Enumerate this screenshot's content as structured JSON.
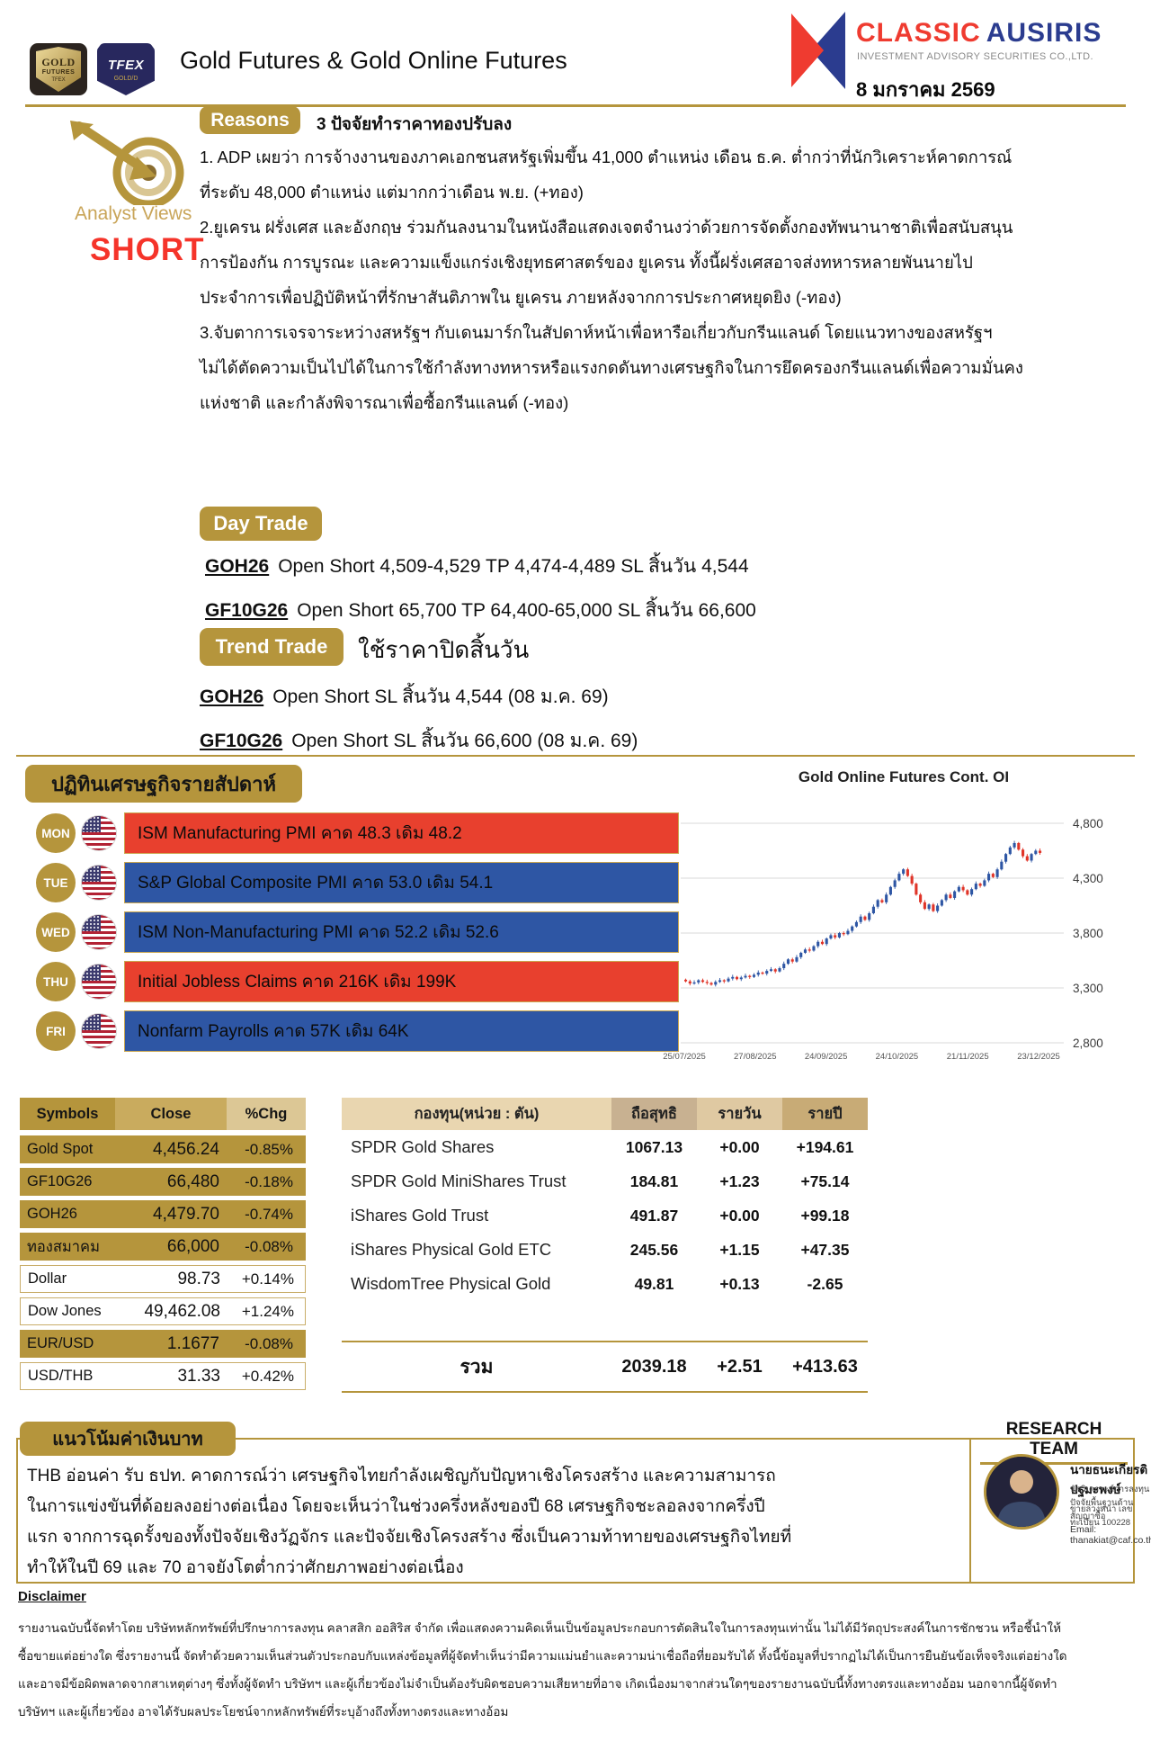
{
  "header": {
    "title": "Gold Futures & Gold Online Futures",
    "date": "8 มกราคม 2569",
    "gold_futures_badge": {
      "line1": "GOLD",
      "line2": "FUTURES",
      "line3": "TFEX"
    },
    "tfex_badge": {
      "line1": "TFEX",
      "line2": "GOLD/D"
    },
    "brand": {
      "name1": "CLASSIC",
      "name2": "AUSIRIS",
      "subtitle": "INVESTMENT ADVISORY SECURITIES CO.,LTD."
    }
  },
  "analyst": {
    "label": "Analyst Views",
    "view": "SHORT"
  },
  "reasons": {
    "badge": "Reasons",
    "title": "3 ปัจจัยทำราคาทองปรับลง",
    "lines": [
      "1. ADP เผยว่า การจ้างงานของภาคเอกชนสหรัฐเพิ่มขึ้น 41,000 ตำแหน่ง เดือน ธ.ค. ต่ำกว่าที่นักวิเคราะห์คาดการณ์",
      "ที่ระดับ 48,000 ตำแหน่ง แต่มากกว่าเดือน พ.ย. (+ทอง)",
      "2.ยูเครน ฝรั่งเศส และอังกฤษ ร่วมกันลงนามในหนังสือแสดงเจตจำนงว่าด้วยการจัดตั้งกองทัพนานาชาติเพื่อสนับสนุน",
      "การป้องกัน การบูรณะ และความแข็งแกร่งเชิงยุทธศาสตร์ของ ยูเครน  ทั้งนี้ฝรั่งเศสอาจส่งทหารหลายพันนายไป",
      "ประจำการเพื่อปฏิบัติหน้าที่รักษาสันติภาพใน ยูเครน ภายหลังจากการประกาศหยุดยิง (-ทอง)",
      "3.จับตาการเจรจาระหว่างสหรัฐฯ กับเดนมาร์กในสัปดาห์หน้าเพื่อหารือเกี่ยวกับกรีนแลนด์ โดยแนวทางของสหรัฐฯ",
      "ไม่ได้ตัดความเป็นไปได้ในการใช้กำลังทางทหารหรือแรงกดดันทางเศรษฐกิจในการยึดครองกรีนแลนด์เพื่อความมั่นคง",
      "แห่งชาติ และกำลังพิจารณาเพื่อซื้อกรีนแลนด์ (-ทอง)"
    ]
  },
  "day_trade": {
    "badge": "Day Trade",
    "items": [
      {
        "symbol": "GOH26",
        "text": "Open Short 4,509-4,529  TP 4,474-4,489 SL สิ้นวัน 4,544"
      },
      {
        "symbol": "GF10G26",
        "text": "Open Short 65,700  TP 64,400-65,000  SL สิ้นวัน 66,600"
      }
    ]
  },
  "trend_trade": {
    "badge": "Trend Trade",
    "note": "ใช้ราคาปิดสิ้นวัน",
    "items": [
      {
        "symbol": "GOH26",
        "text": "Open Short SL สิ้นวัน 4,544 (08 ม.ค. 69)"
      },
      {
        "symbol": "GF10G26",
        "text": "Open Short SL สิ้นวัน 66,600 (08 ม.ค. 69)"
      }
    ]
  },
  "calendar": {
    "title": "ปฏิทินเศรษฐกิจรายสัปดาห์",
    "rows": [
      {
        "day": "MON",
        "color": "red",
        "text": "ISM Manufacturing PMI คาด 48.3  เดิม 48.2"
      },
      {
        "day": "TUE",
        "color": "blue",
        "text": "S&P Global Composite PMI คาด 53.0 เดิม 54.1"
      },
      {
        "day": "WED",
        "color": "blue",
        "text": "ISM Non-Manufacturing PMI คาด 52.2 เดิม 52.6"
      },
      {
        "day": "THU",
        "color": "red",
        "text": "Initial Jobless Claims คาด 216K เดิม 199K"
      },
      {
        "day": "FRI",
        "color": "blue",
        "text": "Nonfarm Payrolls คาด 57K เดิม 64K"
      }
    ]
  },
  "chart_data": {
    "type": "candlestick",
    "title": "Gold Online Futures Cont. OI",
    "x_labels": [
      "25/07/2025",
      "27/08/2025",
      "24/09/2025",
      "24/10/2025",
      "21/11/2025",
      "23/12/2025"
    ],
    "y_tick_labels": [
      "4,800",
      "4,300",
      "3,800",
      "3,300",
      "2,800"
    ],
    "y_ticks": [
      4800,
      4300,
      3800,
      3300,
      2800
    ],
    "ylim": [
      2800,
      4800
    ],
    "grid": true,
    "closes": [
      3360,
      3340,
      3350,
      3370,
      3355,
      3345,
      3330,
      3355,
      3370,
      3360,
      3385,
      3400,
      3380,
      3395,
      3410,
      3400,
      3420,
      3440,
      3430,
      3455,
      3470,
      3450,
      3480,
      3520,
      3560,
      3540,
      3580,
      3620,
      3650,
      3640,
      3680,
      3720,
      3700,
      3750,
      3780,
      3760,
      3800,
      3790,
      3820,
      3860,
      3900,
      3950,
      3920,
      3980,
      4040,
      4100,
      4080,
      4150,
      4220,
      4280,
      4340,
      4380,
      4320,
      4250,
      4150,
      4080,
      4020,
      4060,
      4000,
      4050,
      4100,
      4150,
      4120,
      4180,
      4220,
      4190,
      4150,
      4200,
      4250,
      4230,
      4280,
      4340,
      4310,
      4380,
      4450,
      4520,
      4580,
      4620,
      4560,
      4500,
      4460,
      4520,
      4550,
      4530
    ]
  },
  "symbols_table": {
    "headers": [
      "Symbols",
      "Close",
      "%Chg"
    ],
    "rows": [
      {
        "symbol": "Gold Spot",
        "close": "4,456.24",
        "chg": "-0.85%",
        "style": "gold"
      },
      {
        "symbol": "GF10G26",
        "close": "66,480",
        "chg": "-0.18%",
        "style": "gold"
      },
      {
        "symbol": "GOH26",
        "close": "4,479.70",
        "chg": "-0.74%",
        "style": "gold"
      },
      {
        "symbol": "ทองสมาคม",
        "close": "66,000",
        "chg": "-0.08%",
        "style": "gold"
      },
      {
        "symbol": "Dollar",
        "close": "98.73",
        "chg": "+0.14%",
        "style": "white"
      },
      {
        "symbol": "Dow Jones",
        "close": "49,462.08",
        "chg": "+1.24%",
        "style": "white"
      },
      {
        "symbol": "EUR/USD",
        "close": "1.1677",
        "chg": "-0.08%",
        "style": "gold"
      },
      {
        "symbol": "USD/THB",
        "close": "31.33",
        "chg": "+0.42%",
        "style": "white"
      }
    ]
  },
  "funds_table": {
    "headers": [
      "กองทุน(หน่วย : ตัน)",
      "ถือสุทธิ",
      "รายวัน",
      "รายปี"
    ],
    "rows": [
      [
        "SPDR Gold Shares",
        "1067.13",
        "+0.00",
        "+194.61"
      ],
      [
        "SPDR Gold MiniShares Trust",
        "184.81",
        "+1.23",
        "+75.14"
      ],
      [
        "iShares Gold Trust",
        "491.87",
        "+0.00",
        "+99.18"
      ],
      [
        "iShares Physical Gold ETC",
        "245.56",
        "+1.15",
        "+47.35"
      ],
      [
        "WisdomTree Physical Gold",
        "49.81",
        "+0.13",
        "-2.65"
      ]
    ],
    "total": {
      "label": "รวม",
      "net": "2039.18",
      "day": "+2.51",
      "year": "+413.63"
    }
  },
  "thb": {
    "badge": "แนวโน้มค่าเงินบาท",
    "lines": [
      "THB อ่อนค่า รับ ธปท. คาดการณ์ว่า เศรษฐกิจไทยกำลังเผชิญกับปัญหาเชิงโครงสร้าง และความสามารถ",
      "ในการแข่งขันที่ด้อยลงอย่างต่อเนื่อง โดยจะเห็นว่าในช่วงครึ่งหลังของปี 68 เศรษฐกิจชะลอลงจากครึ่งปี",
      "แรก จากการฉุดรั้งของทั้งปัจจัยเชิงวัฏจักร และปัจจัยเชิงโครงสร้าง ซึ่งเป็นความท้าทายของเศรษฐกิจไทยที่",
      "ทำให้ในปี 69 และ 70 อาจยังโตต่ำกว่าศักยภาพอย่างต่อเนื่อง"
    ]
  },
  "research": {
    "title": "RESEARCH TEAM",
    "name": "นายธนะเกียรติ ปฐมะพงษ์",
    "line1": "นักวิเคราะห์การลงทุนปัจจัยพื้นฐานด้านสัญญาซื้อ",
    "line2": "ขายล่วงหน้า เลขทะเบียน 100228",
    "email": "Email: thanakiat@caf.co.th"
  },
  "disclaimer": {
    "title": "Disclaimer",
    "lines": [
      "รายงานฉบับนี้จัดทำโดย บริษัทหลักทรัพย์ที่ปรึกษาการลงทุน คลาสสิก ออสิริส จำกัด เพื่อแสดงความคิดเห็นเป็นข้อมูลประกอบการตัดสินใจในการลงทุนเท่านั้น  ไม่ได้มีวัตถุประสงค์ในการชักชวน  หรือชี้นำให้",
      "ซื้อขายแต่อย่างใด ซึ่งรายงานนี้ จัดทำด้วยความเห็นส่วนตัวประกอบกับแหล่งข้อมูลที่ผู้จัดทำเห็นว่ามีความแม่นยำและความน่าเชื่อถือที่ยอมรับได้  ทั้งนี้ข้อมูลที่ปรากฏไม่ได้เป็นการยืนยันข้อเท็จจริงแต่อย่างใด",
      "และอาจมีข้อผิดพลาดจากสาเหตุต่างๆ ซึ่งทั้งผู้จัดทำ บริษัทฯ และผู้เกี่ยวข้องไม่จำเป็นต้องรับผิดชอบความเสียหายที่อาจ  เกิดเนื่องมาจากส่วนใดๆของรายงานฉบับนี้ทั้งทางตรงและทางอ้อม  นอกจากนี้ผู้จัดทำ",
      "บริษัทฯ และผู้เกี่ยวข้อง อาจได้รับผลประโยชน์จากหลักทรัพย์ที่ระบุอ้างถึงทั้งทางตรงและทางอ้อม"
    ]
  },
  "colors": {
    "gold": "#b5953c",
    "calendar_red": "#e8402e",
    "calendar_blue": "#2e56a4",
    "short_red": "#f5342a",
    "brand_red": "#ef3b30",
    "brand_blue": "#2b3c8f",
    "candle_up": "#2e56a4",
    "candle_down": "#e03428"
  }
}
